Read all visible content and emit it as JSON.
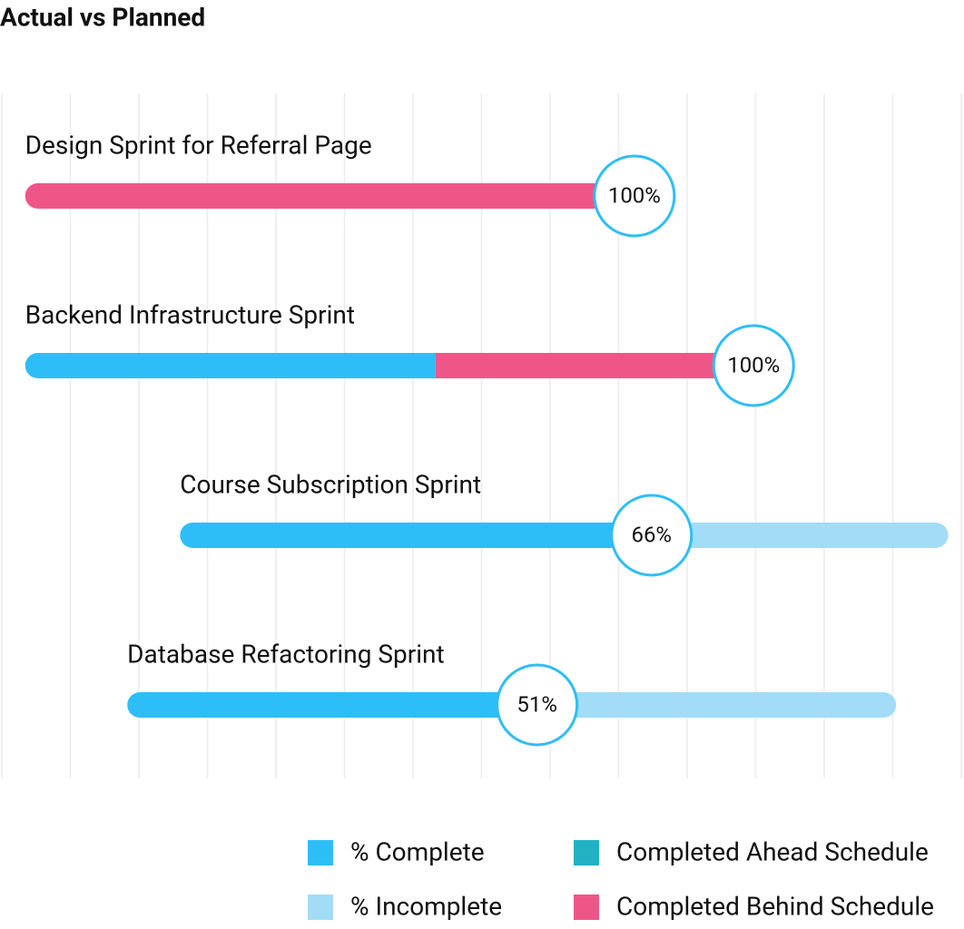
{
  "chart_data": {
    "type": "progress-gantt",
    "title": "Actual vs Planned",
    "categories": [
      "Design Sprint for Referral Page",
      "Backend Infrastructure Sprint",
      "Course Subscription Sprint",
      "Database Refactoring Sprint"
    ],
    "starts": [
      0.34,
      0.34,
      2.6,
      1.83
    ],
    "series": [
      {
        "name": "% Complete",
        "color": "#2ebef7",
        "values": [
          0,
          5.99,
          6.88,
          5.98
        ]
      },
      {
        "name": "% Incomplete",
        "color": "#a2dcf7",
        "values": [
          0,
          0,
          4.33,
          5.24
        ]
      },
      {
        "name": "Completed Ahead Schedule",
        "color": "#23b1c4",
        "values": [
          0,
          0,
          0,
          0
        ]
      },
      {
        "name": "Completed Behind Schedule",
        "color": "#ef5688",
        "values": [
          8.89,
          4.64,
          0,
          0
        ]
      }
    ],
    "values": [
      100,
      100,
      66,
      51
    ],
    "value_labels": [
      "100%",
      "100%",
      "66%",
      "51%"
    ],
    "xlim": [
      0,
      14
    ],
    "xticks": [
      0,
      1,
      2,
      3,
      4,
      5,
      6,
      7,
      8,
      9,
      10,
      11,
      12,
      13,
      14
    ],
    "grid": true
  }
}
